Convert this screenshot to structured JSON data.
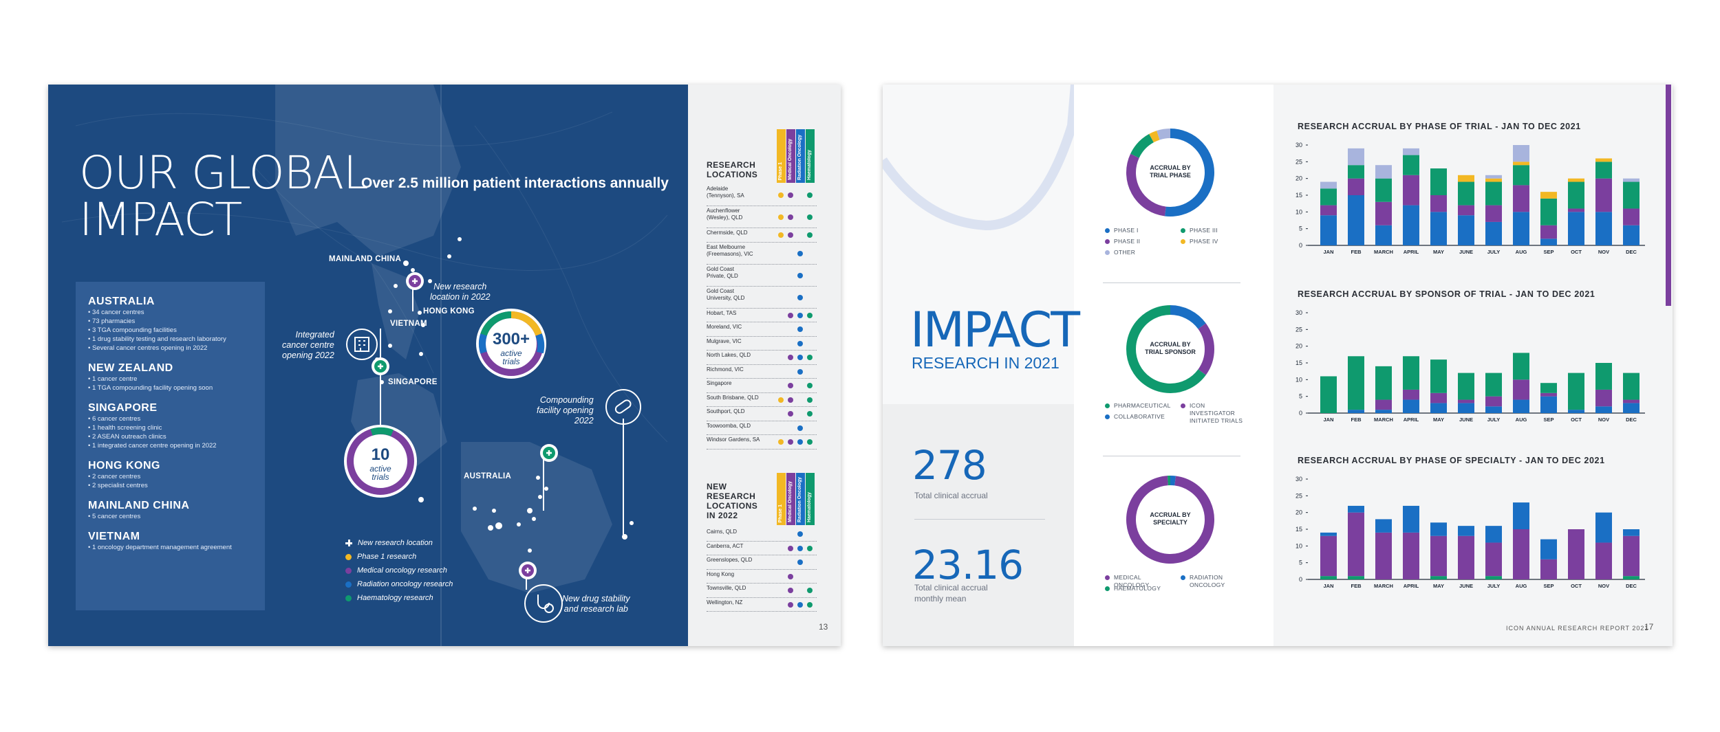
{
  "left_page": {
    "title": "OUR GLOBAL\nIMPACT",
    "subtitle": "Over 2.5 million patient interactions annually",
    "regions": [
      {
        "name": "AUSTRALIA",
        "lines": [
          "• 34 cancer centres",
          "• 73 pharmacies",
          "• 3 TGA compounding facilities",
          "• 1 drug stability testing and research laboratory",
          "• Several cancer centres opening in 2022"
        ]
      },
      {
        "name": "NEW ZEALAND",
        "lines": [
          "• 1 cancer centre",
          "• 1 TGA compounding facility opening soon"
        ]
      },
      {
        "name": "SINGAPORE",
        "lines": [
          "• 6 cancer centres",
          "• 1 health screening clinic",
          "• 2 ASEAN outreach clinics",
          "• 1 integrated cancer centre opening in 2022"
        ]
      },
      {
        "name": "HONG KONG",
        "lines": [
          "• 2 cancer centres",
          "• 2 specialist centres"
        ]
      },
      {
        "name": "MAINLAND CHINA",
        "lines": [
          "• 5 cancer centres"
        ]
      },
      {
        "name": "VIETNAM",
        "lines": [
          "• 1 oncology department management agreement"
        ]
      }
    ],
    "map_labels": {
      "mainland_china": "MAINLAND CHINA",
      "vietnam": "VIETNAM",
      "hong_kong": "HONG KONG",
      "singapore": "SINGAPORE",
      "australia": "AUSTRALIA",
      "new_research_location": "New research\nlocation in 2022",
      "integrated_centre": "Integrated\ncancer centre\nopening 2022",
      "compounding": "Compounding\nfacility opening\n2022",
      "drug_stability": "New drug stability\nand research lab"
    },
    "badges": {
      "big_number": "300+",
      "big_text": "active\ntrials",
      "small_number": "10",
      "small_text": "active\ntrials"
    },
    "legend": [
      {
        "label": "New research location",
        "color": "#ffffff"
      },
      {
        "label": "Phase 1 research",
        "color": "#f2b824"
      },
      {
        "label": "Medical oncology research",
        "color": "#7b3f9e"
      },
      {
        "label": "Radiation oncology research",
        "color": "#1a6fc4"
      },
      {
        "label": "Haematology research",
        "color": "#0f9a6e"
      }
    ],
    "research_locations": {
      "heading": "RESEARCH\nLOCATIONS",
      "columns": [
        "Phase 1",
        "Medical Oncology",
        "Radiation Oncology",
        "Haematology"
      ],
      "rows": [
        {
          "name": "Adelaide\n(Tennyson), SA",
          "dots": [
            1,
            1,
            0,
            1
          ]
        },
        {
          "name": "Auchenflower\n(Wesley), QLD",
          "dots": [
            1,
            1,
            0,
            1
          ]
        },
        {
          "name": "Chermside, QLD",
          "dots": [
            1,
            1,
            0,
            1
          ]
        },
        {
          "name": "East Melbourne\n(Freemasons), VIC",
          "dots": [
            0,
            0,
            1,
            0
          ]
        },
        {
          "name": "Gold Coast\nPrivate, QLD",
          "dots": [
            0,
            0,
            1,
            0
          ]
        },
        {
          "name": "Gold Coast\nUniversity, QLD",
          "dots": [
            0,
            0,
            1,
            0
          ]
        },
        {
          "name": "Hobart, TAS",
          "dots": [
            0,
            1,
            1,
            1
          ]
        },
        {
          "name": "Moreland, VIC",
          "dots": [
            0,
            0,
            1,
            0
          ]
        },
        {
          "name": "Mulgrave, VIC",
          "dots": [
            0,
            0,
            1,
            0
          ]
        },
        {
          "name": "North Lakes, QLD",
          "dots": [
            0,
            1,
            1,
            1
          ]
        },
        {
          "name": "Richmond, VIC",
          "dots": [
            0,
            0,
            1,
            0
          ]
        },
        {
          "name": "Singapore",
          "dots": [
            0,
            1,
            0,
            1
          ]
        },
        {
          "name": "South Brisbane, QLD",
          "dots": [
            1,
            1,
            0,
            1
          ]
        },
        {
          "name": "Southport, QLD",
          "dots": [
            0,
            1,
            0,
            1
          ]
        },
        {
          "name": "Toowoomba, QLD",
          "dots": [
            0,
            0,
            1,
            0
          ]
        },
        {
          "name": "Windsor Gardens, SA",
          "dots": [
            1,
            1,
            1,
            1
          ]
        }
      ]
    },
    "new_locations": {
      "heading": "NEW\nRESEARCH\nLOCATIONS\nIN 2022",
      "columns": [
        "Phase 1",
        "Medical Oncology",
        "Radiation Oncology",
        "Haematology"
      ],
      "rows": [
        {
          "name": "Cairns, QLD",
          "dots": [
            0,
            0,
            1,
            0
          ]
        },
        {
          "name": "Canberra, ACT",
          "dots": [
            0,
            1,
            1,
            1
          ]
        },
        {
          "name": "Greenslopes, QLD",
          "dots": [
            0,
            0,
            1,
            0
          ]
        },
        {
          "name": "Hong Kong",
          "dots": [
            0,
            1,
            0,
            0
          ]
        },
        {
          "name": "Townsville, QLD",
          "dots": [
            0,
            1,
            0,
            1
          ]
        },
        {
          "name": "Wellington, NZ",
          "dots": [
            0,
            1,
            1,
            1
          ]
        }
      ]
    },
    "page_number": "13"
  },
  "right_page": {
    "title": "IMPACT",
    "subtitle": "RESEARCH IN 2021",
    "stat1_value": "278",
    "stat1_label": "Total clinical accrual",
    "stat2_value": "23.16",
    "stat2_label": "Total clinical accrual\nmonthly mean",
    "footer": "ICON ANNUAL RESEARCH REPORT 2021",
    "page_number": "17",
    "donuts": [
      {
        "label": "ACCRUAL BY\nTRIAL PHASE",
        "slices": [
          {
            "name": "PHASE I",
            "value": 52,
            "color": "#1a6fc4"
          },
          {
            "name": "PHASE II",
            "value": 30,
            "color": "#7b3f9e"
          },
          {
            "name": "PHASE III",
            "value": 10,
            "color": "#0f9a6e"
          },
          {
            "name": "PHASE IV",
            "value": 3,
            "color": "#f2b824"
          },
          {
            "name": "OTHER",
            "value": 5,
            "color": "#a8b4dd"
          }
        ],
        "legend": [
          {
            "name": "PHASE I",
            "color": "#1a6fc4"
          },
          {
            "name": "PHASE III",
            "color": "#0f9a6e"
          },
          {
            "name": "PHASE II",
            "color": "#7b3f9e"
          },
          {
            "name": "PHASE IV",
            "color": "#f2b824"
          },
          {
            "name": "OTHER",
            "color": "#a8b4dd"
          }
        ]
      },
      {
        "label": "ACCRUAL BY\nTRIAL SPONSOR",
        "slices": [
          {
            "name": "COLLABORATIVE",
            "value": 15,
            "color": "#1a6fc4"
          },
          {
            "name": "ICON INVESTIGATOR INITIATED TRIALS",
            "value": 20,
            "color": "#7b3f9e"
          },
          {
            "name": "PHARMACEUTICAL",
            "value": 65,
            "color": "#0f9a6e"
          }
        ],
        "legend": [
          {
            "name": "PHARMACEUTICAL",
            "color": "#0f9a6e"
          },
          {
            "name": "ICON\nINVESTIGATOR\nINITIATED TRIALS",
            "color": "#7b3f9e"
          },
          {
            "name": "COLLABORATIVE",
            "color": "#1a6fc4"
          }
        ]
      },
      {
        "label": "ACCRUAL BY\nSPECIALTY",
        "slices": [
          {
            "name": "RADIATION ONCOLOGY",
            "value": 2,
            "color": "#1a6fc4"
          },
          {
            "name": "MEDICAL ONCOLOGY",
            "value": 97,
            "color": "#7b3f9e"
          },
          {
            "name": "HAEMATOLOGY",
            "value": 1,
            "color": "#0f9a6e"
          }
        ],
        "legend": [
          {
            "name": "MEDICAL\nONCOLOGY",
            "color": "#7b3f9e"
          },
          {
            "name": "RADIATION\nONCOLOGY",
            "color": "#1a6fc4"
          },
          {
            "name": "HAEMATOLOGY",
            "color": "#0f9a6e"
          }
        ]
      }
    ]
  },
  "chart_data": [
    {
      "type": "bar",
      "title": "RESEARCH ACCRUAL BY PHASE OF TRIAL - JAN TO DEC 2021",
      "categories": [
        "JAN",
        "FEB",
        "MARCH",
        "APRIL",
        "MAY",
        "JUNE",
        "JULY",
        "AUG",
        "SEP",
        "OCT",
        "NOV",
        "DEC"
      ],
      "stacked": true,
      "yticks": [
        0,
        5,
        10,
        15,
        20,
        25,
        30
      ],
      "ylim": [
        0,
        30
      ],
      "series": [
        {
          "name": "PHASE I",
          "color": "#1a6fc4",
          "values": [
            9,
            15,
            6,
            12,
            10,
            9,
            7,
            10,
            2,
            10,
            10,
            6
          ]
        },
        {
          "name": "PHASE II",
          "color": "#7b3f9e",
          "values": [
            3,
            5,
            7,
            9,
            5,
            3,
            5,
            8,
            4,
            1,
            10,
            5
          ]
        },
        {
          "name": "PHASE III",
          "color": "#0f9a6e",
          "values": [
            5,
            4,
            7,
            6,
            8,
            7,
            7,
            6,
            8,
            8,
            5,
            8
          ]
        },
        {
          "name": "PHASE IV",
          "color": "#f2b824",
          "values": [
            0,
            0,
            0,
            0,
            0,
            2,
            1,
            1,
            2,
            1,
            1,
            0
          ]
        },
        {
          "name": "OTHER",
          "color": "#a8b4dd",
          "values": [
            2,
            5,
            4,
            2,
            0,
            0,
            1,
            5,
            0,
            0,
            0,
            1
          ]
        }
      ]
    },
    {
      "type": "bar",
      "title": "RESEARCH ACCRUAL BY SPONSOR OF TRIAL - JAN TO DEC 2021",
      "categories": [
        "JAN",
        "FEB",
        "MARCH",
        "APRIL",
        "MAY",
        "JUNE",
        "JULY",
        "AUG",
        "SEP",
        "OCT",
        "NOV",
        "DEC"
      ],
      "stacked": true,
      "yticks": [
        0,
        5,
        10,
        15,
        20,
        25,
        30
      ],
      "ylim": [
        0,
        30
      ],
      "series": [
        {
          "name": "COLLABORATIVE",
          "color": "#1a6fc4",
          "values": [
            0,
            1,
            1,
            4,
            3,
            3,
            2,
            4,
            5,
            1,
            2,
            3
          ]
        },
        {
          "name": "ICON INVESTIGATOR INITIATED TRIALS",
          "color": "#7b3f9e",
          "values": [
            0,
            0,
            3,
            3,
            3,
            1,
            3,
            6,
            1,
            0,
            5,
            1
          ]
        },
        {
          "name": "PHARMACEUTICAL",
          "color": "#0f9a6e",
          "values": [
            11,
            16,
            10,
            10,
            10,
            8,
            7,
            8,
            3,
            11,
            8,
            8
          ]
        }
      ]
    },
    {
      "type": "bar",
      "title": "RESEARCH ACCRUAL BY PHASE OF SPECIALTY - JAN TO DEC 2021",
      "categories": [
        "JAN",
        "FEB",
        "MARCH",
        "APRIL",
        "MAY",
        "JUNE",
        "JULY",
        "AUG",
        "SEP",
        "OCT",
        "NOV",
        "DEC"
      ],
      "stacked": true,
      "yticks": [
        0,
        5,
        10,
        15,
        20,
        25,
        30
      ],
      "ylim": [
        0,
        30
      ],
      "series": [
        {
          "name": "HAEMATOLOGY",
          "color": "#0f9a6e",
          "values": [
            1,
            1,
            0,
            0,
            1,
            0,
            1,
            0,
            0,
            0,
            0,
            1
          ]
        },
        {
          "name": "MEDICAL ONCOLOGY",
          "color": "#7b3f9e",
          "values": [
            12,
            19,
            14,
            14,
            12,
            13,
            10,
            15,
            6,
            15,
            11,
            12
          ]
        },
        {
          "name": "RADIATION ONCOLOGY",
          "color": "#1a6fc4",
          "values": [
            1,
            2,
            4,
            8,
            4,
            3,
            5,
            8,
            6,
            0,
            9,
            2
          ]
        }
      ]
    }
  ]
}
